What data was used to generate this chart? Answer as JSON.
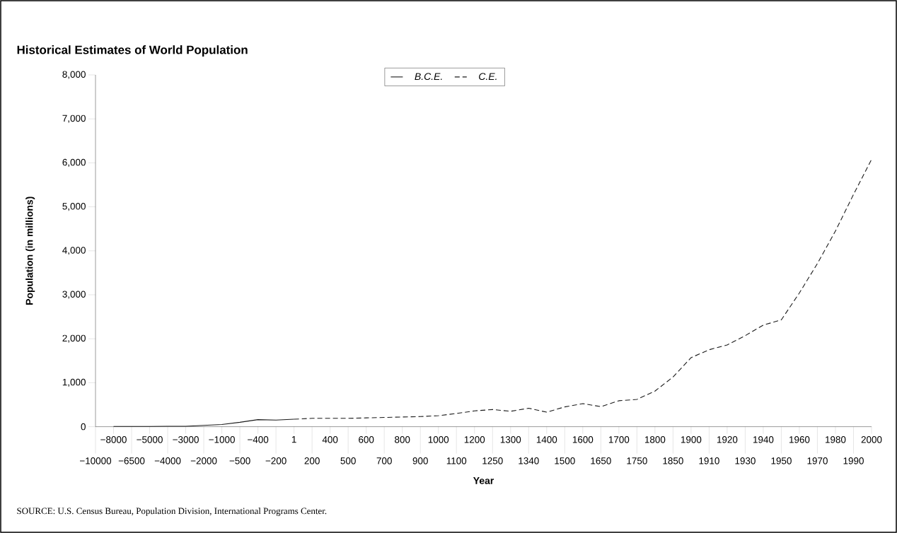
{
  "chart_data": {
    "type": "line",
    "title": "Historical Estimates of World Population",
    "xlabel": "Year",
    "ylabel": "Population (in millions)",
    "categories": [
      "−10000",
      "−8000",
      "−6500",
      "−5000",
      "−4000",
      "−3000",
      "−2000",
      "−1000",
      "−500",
      "−400",
      "−200",
      "1",
      "200",
      "400",
      "500",
      "600",
      "700",
      "800",
      "900",
      "1000",
      "1100",
      "1200",
      "1250",
      "1300",
      "1340",
      "1400",
      "1500",
      "1600",
      "1650",
      "1700",
      "1750",
      "1800",
      "1850",
      "1900",
      "1910",
      "1920",
      "1930",
      "1940",
      "1950",
      "1960",
      "1970",
      "1980",
      "1990",
      "2000"
    ],
    "series": [
      {
        "name": "B.C.E.",
        "color": "#1a1a1a",
        "line_style": "solid",
        "values": [
          null,
          5,
          5,
          5,
          10,
          10,
          30,
          50,
          100,
          160,
          150,
          170,
          null,
          null,
          null,
          null,
          null,
          null,
          null,
          null,
          null,
          null,
          null,
          null,
          null,
          null,
          null,
          null,
          null,
          null,
          null,
          null,
          null,
          null,
          null,
          null,
          null,
          null,
          null,
          null,
          null,
          null,
          null,
          null
        ]
      },
      {
        "name": "C.E.",
        "color": "#1a1a1a",
        "line_style": "dashed",
        "values": [
          null,
          null,
          null,
          null,
          null,
          null,
          null,
          null,
          null,
          null,
          null,
          170,
          190,
          190,
          190,
          200,
          210,
          220,
          230,
          250,
          300,
          360,
          390,
          350,
          420,
          330,
          450,
          525,
          455,
          590,
          620,
          810,
          1130,
          1570,
          1750,
          1860,
          2070,
          2310,
          2430,
          3040,
          3710,
          4450,
          5280,
          6080
        ]
      }
    ],
    "ylim": [
      0,
      8000
    ],
    "yticks": [
      {
        "value": 0,
        "label": "0"
      },
      {
        "value": 1000,
        "label": "1,000"
      },
      {
        "value": 2000,
        "label": "2,000"
      },
      {
        "value": 3000,
        "label": "3,000"
      },
      {
        "value": 4000,
        "label": "4,000"
      },
      {
        "value": 5000,
        "label": "5,000"
      },
      {
        "value": 6000,
        "label": "6,000"
      },
      {
        "value": 7000,
        "label": "7,000"
      },
      {
        "value": 8000,
        "label": "8,000"
      }
    ],
    "marker": "none",
    "grid": false,
    "legend": "top",
    "annotations": [
      "SOURCE: U.S. Census Bureau, Population Division, International Programs Center."
    ]
  }
}
